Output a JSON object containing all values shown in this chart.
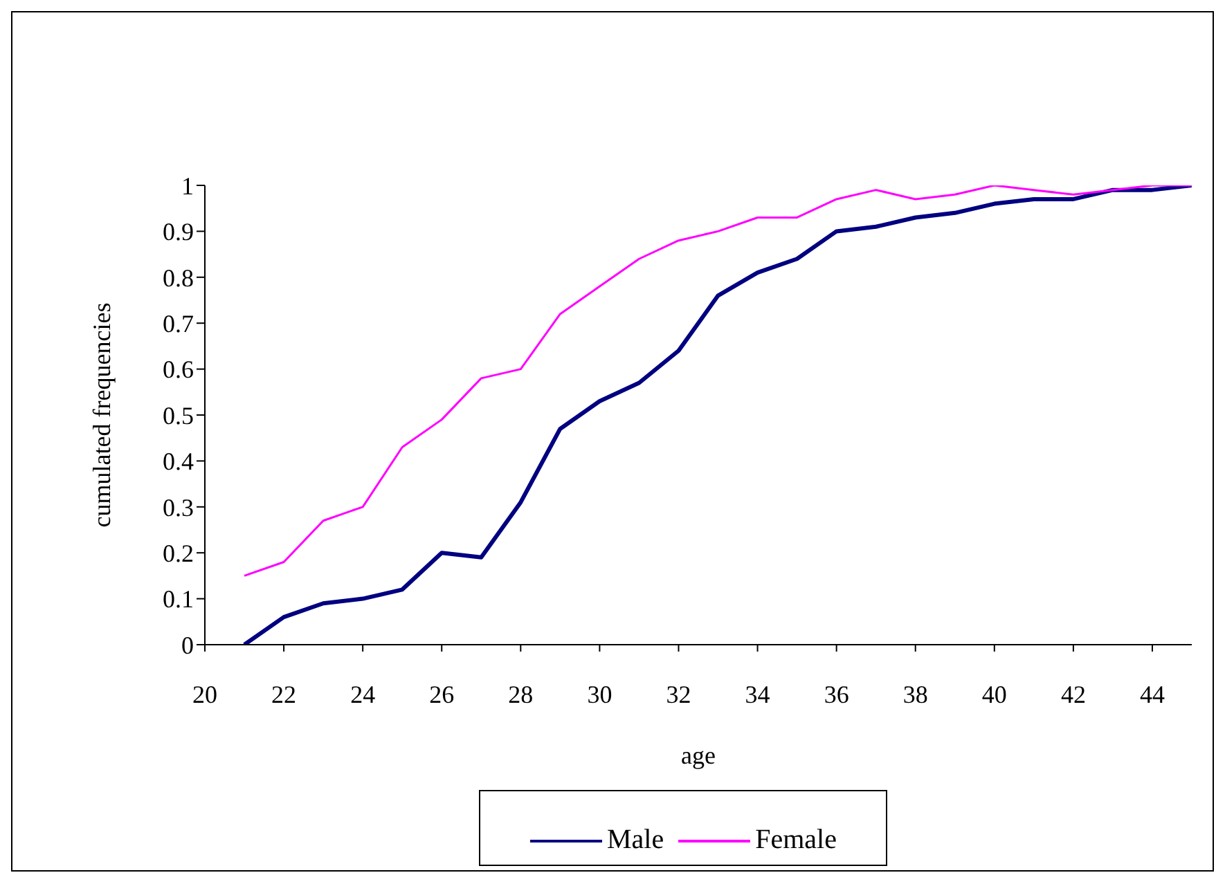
{
  "chart_data": {
    "type": "line",
    "xlabel": "age",
    "ylabel": "cumulated frequencies",
    "x": [
      21,
      22,
      23,
      24,
      25,
      26,
      27,
      28,
      29,
      30,
      31,
      32,
      33,
      34,
      35,
      36,
      37,
      38,
      39,
      40,
      41,
      42,
      43,
      44,
      45
    ],
    "series": [
      {
        "name": "Male",
        "color": "#000080",
        "values": [
          0,
          0.06,
          0.09,
          0.1,
          0.12,
          0.2,
          0.19,
          0.31,
          0.47,
          0.53,
          0.57,
          0.64,
          0.76,
          0.81,
          0.84,
          0.9,
          0.91,
          0.93,
          0.94,
          0.96,
          0.97,
          0.97,
          0.99,
          0.99,
          1.0
        ]
      },
      {
        "name": "Female",
        "color": "#ff00ff",
        "values": [
          0.15,
          0.18,
          0.27,
          0.3,
          0.43,
          0.49,
          0.58,
          0.6,
          0.72,
          0.78,
          0.84,
          0.88,
          0.9,
          0.93,
          0.93,
          0.97,
          0.99,
          0.97,
          0.98,
          1.0,
          0.99,
          0.98,
          0.99,
          1.0,
          1.0
        ]
      }
    ],
    "xlim": [
      20,
      45
    ],
    "xticks": [
      20,
      22,
      24,
      26,
      28,
      30,
      32,
      34,
      36,
      38,
      40,
      42,
      44
    ],
    "ylim": [
      0,
      1
    ],
    "yticks": [
      0,
      0.1,
      0.2,
      0.3,
      0.4,
      0.5,
      0.6,
      0.7,
      0.8,
      0.9,
      1
    ],
    "grid": false,
    "legend": "bottom",
    "marker": "none",
    "line_style": "solid"
  }
}
